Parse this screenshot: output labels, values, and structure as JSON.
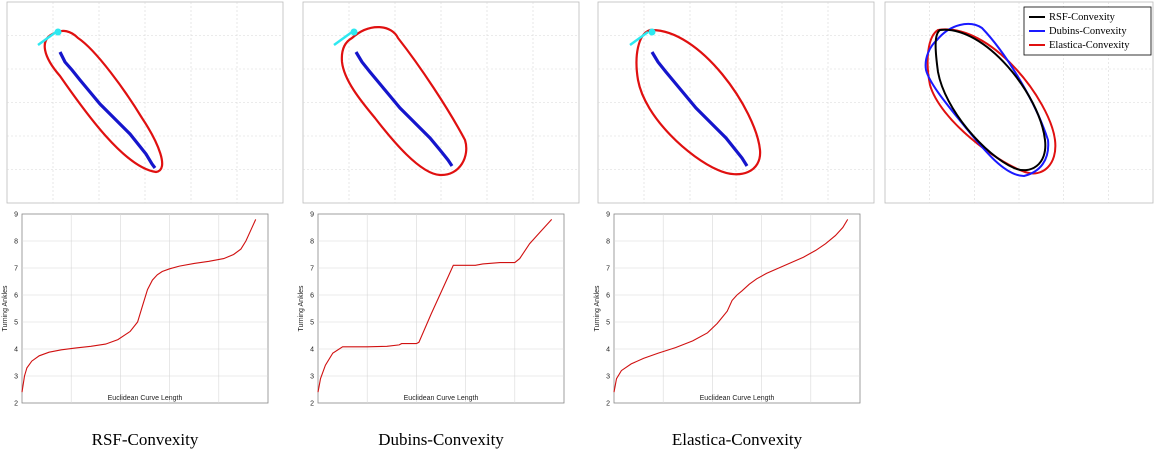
{
  "legend": {
    "entries": [
      {
        "label": "RSF-Convexity",
        "color": "#000000"
      },
      {
        "label": "Dubins-Convexity",
        "color": "#1a1aff"
      },
      {
        "label": "Elastica-Convexity",
        "color": "#e01010"
      }
    ]
  },
  "colors": {
    "data_curve": "#1515cc",
    "start_marker": "#2ee8f0",
    "hull": "#e01010",
    "angle_curve": "#d01010",
    "grid": "#d8d8d8"
  },
  "captions": [
    "RSF-Convexity",
    "Dubins-Convexity",
    "Elastica-Convexity"
  ],
  "chart_data": [
    {
      "type": "line",
      "title": "",
      "xlabel": "Euclidean Curve Length",
      "ylabel": "Turning Ankles",
      "yticks": [
        "2",
        "3",
        "4",
        "5",
        "6",
        "7",
        "8",
        "9"
      ],
      "ylim": [
        2,
        9
      ],
      "xlim": [
        0,
        1
      ],
      "grid": true,
      "series": [
        {
          "x": [
            0.0,
            0.01,
            0.02,
            0.04,
            0.07,
            0.11,
            0.16,
            0.22,
            0.28,
            0.34,
            0.39,
            0.44,
            0.47,
            0.49,
            0.51,
            0.53,
            0.55,
            0.57,
            0.6,
            0.64,
            0.7,
            0.76,
            0.82,
            0.86,
            0.89,
            0.91,
            0.93,
            0.95
          ],
          "y": [
            2.4,
            3.0,
            3.3,
            3.55,
            3.75,
            3.88,
            3.97,
            4.04,
            4.1,
            4.18,
            4.35,
            4.65,
            5.0,
            5.6,
            6.2,
            6.55,
            6.75,
            6.87,
            6.97,
            7.07,
            7.17,
            7.25,
            7.35,
            7.5,
            7.7,
            8.0,
            8.4,
            8.8
          ]
        }
      ]
    },
    {
      "type": "line",
      "title": "",
      "xlabel": "Euclidean Curve Length",
      "ylabel": "Turning Ankles",
      "yticks": [
        "2",
        "3",
        "4",
        "5",
        "6",
        "7",
        "8",
        "9"
      ],
      "ylim": [
        2,
        9
      ],
      "xlim": [
        0,
        1
      ],
      "grid": true,
      "series": [
        {
          "x": [
            0.0,
            0.01,
            0.03,
            0.06,
            0.1,
            0.2,
            0.28,
            0.33,
            0.34,
            0.4,
            0.41,
            0.46,
            0.53,
            0.55,
            0.64,
            0.67,
            0.74,
            0.8,
            0.82,
            0.86,
            0.9,
            0.95
          ],
          "y": [
            2.4,
            2.9,
            3.4,
            3.85,
            4.08,
            4.08,
            4.1,
            4.15,
            4.2,
            4.2,
            4.25,
            5.3,
            6.7,
            7.1,
            7.1,
            7.15,
            7.2,
            7.2,
            7.35,
            7.9,
            8.3,
            8.8
          ]
        }
      ]
    },
    {
      "type": "line",
      "title": "",
      "xlabel": "Euclidean Curve Length",
      "ylabel": "Turning Ankles",
      "yticks": [
        "2",
        "3",
        "4",
        "5",
        "6",
        "7",
        "8",
        "9"
      ],
      "ylim": [
        2,
        9
      ],
      "xlim": [
        0,
        1
      ],
      "grid": true,
      "series": [
        {
          "x": [
            0.0,
            0.01,
            0.03,
            0.07,
            0.12,
            0.18,
            0.25,
            0.32,
            0.38,
            0.42,
            0.46,
            0.48,
            0.5,
            0.52,
            0.55,
            0.58,
            0.62,
            0.67,
            0.72,
            0.77,
            0.82,
            0.86,
            0.9,
            0.93,
            0.95
          ],
          "y": [
            2.4,
            2.9,
            3.2,
            3.45,
            3.65,
            3.85,
            4.05,
            4.3,
            4.6,
            4.95,
            5.4,
            5.8,
            6.0,
            6.15,
            6.4,
            6.6,
            6.8,
            7.0,
            7.2,
            7.4,
            7.65,
            7.9,
            8.2,
            8.5,
            8.8
          ]
        }
      ]
    }
  ]
}
